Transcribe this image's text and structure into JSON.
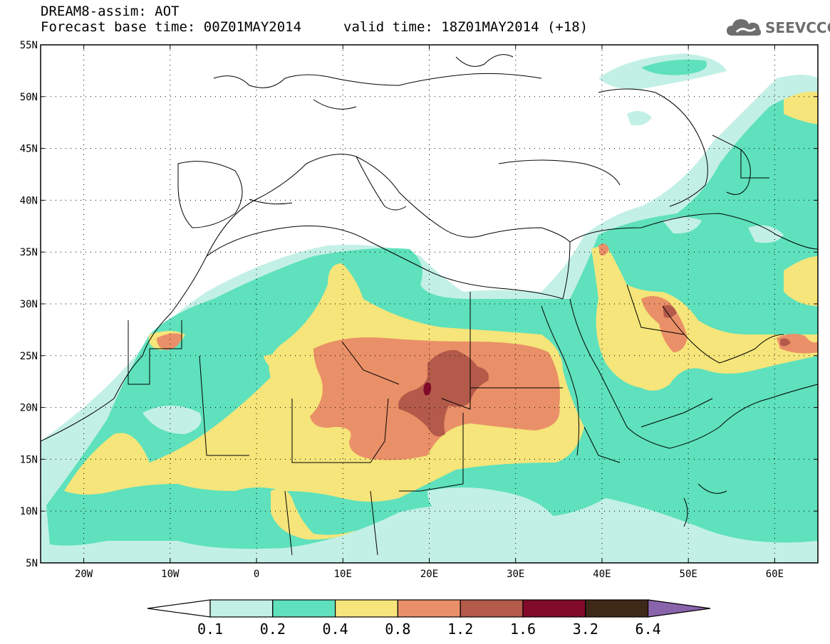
{
  "header": {
    "title_line1": "DREAM8-assim: AOT",
    "base_time": "Forecast base time: 00Z01MAY2014",
    "valid_time": "valid time: 18Z01MAY2014 (+18)"
  },
  "logo": {
    "text": "SEEVCCC",
    "icon": "cloud-icon"
  },
  "map": {
    "lon_range": [
      -25,
      65
    ],
    "lat_range": [
      5,
      55
    ],
    "lat_ticks": [
      "55N",
      "50N",
      "45N",
      "40N",
      "35N",
      "30N",
      "25N",
      "20N",
      "15N",
      "10N",
      "5N"
    ],
    "lon_ticks": [
      "20W",
      "10W",
      "0",
      "10E",
      "20E",
      "30E",
      "40E",
      "50E",
      "60E"
    ]
  },
  "colorbar": {
    "labels": [
      "0.1",
      "0.2",
      "0.4",
      "0.8",
      "1.2",
      "1.6",
      "3.2",
      "6.4"
    ],
    "colors": [
      "#ffffff",
      "#c3f0e6",
      "#5ee1bc",
      "#f5e57a",
      "#ea9068",
      "#b35a4a",
      "#820a2a",
      "#3e2818",
      "#8a64aa"
    ]
  },
  "colors": {
    "aot_01_02": "#c3f0e6",
    "aot_02_04": "#5ee1bc",
    "aot_04_08": "#f5e57a",
    "aot_08_12": "#ea9068",
    "aot_12_16": "#b35a4a",
    "aot_16_32": "#820a2a"
  }
}
